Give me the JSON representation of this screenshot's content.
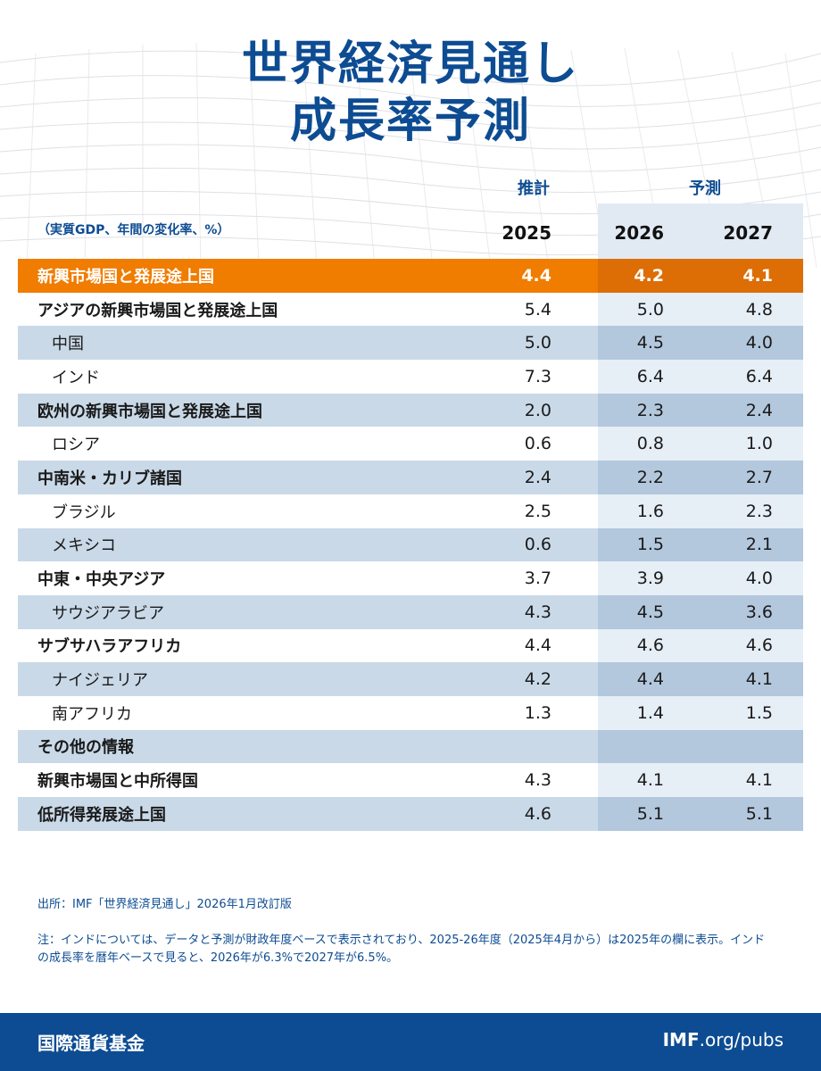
{
  "title": {
    "line1": "世界経済見通し",
    "line2": "成長率予測"
  },
  "header": {
    "estimate_label": "推計",
    "projection_label": "予測",
    "unit_note": "（実質GDP、年間の変化率、%）",
    "years": [
      "2025",
      "2026",
      "2027"
    ]
  },
  "colors": {
    "accent": "#0d4c92",
    "highlight": "#f07c00",
    "shade": "#c9d9e8",
    "projection_shade": "#b3c7dd"
  },
  "chart_data": {
    "type": "table",
    "columns": [
      "2025",
      "2026",
      "2027"
    ],
    "rows": [
      {
        "label": "新興市場国と発展途上国",
        "values": [
          "4.4",
          "4.2",
          "4.1"
        ]
      },
      {
        "label": "アジアの新興市場国と発展途上国",
        "values": [
          "5.4",
          "5.0",
          "4.8"
        ]
      },
      {
        "label": "中国",
        "values": [
          "5.0",
          "4.5",
          "4.0"
        ]
      },
      {
        "label": "インド",
        "values": [
          "7.3",
          "6.4",
          "6.4"
        ]
      },
      {
        "label": "欧州の新興市場国と発展途上国",
        "values": [
          "2.0",
          "2.3",
          "2.4"
        ]
      },
      {
        "label": "ロシア",
        "values": [
          "0.6",
          "0.8",
          "1.0"
        ]
      },
      {
        "label": "中南米・カリブ諸国",
        "values": [
          "2.4",
          "2.2",
          "2.7"
        ]
      },
      {
        "label": "ブラジル",
        "values": [
          "2.5",
          "1.6",
          "2.3"
        ]
      },
      {
        "label": "メキシコ",
        "values": [
          "0.6",
          "1.5",
          "2.1"
        ]
      },
      {
        "label": "中東・中央アジア",
        "values": [
          "3.7",
          "3.9",
          "4.0"
        ]
      },
      {
        "label": "サウジアラビア",
        "values": [
          "4.3",
          "4.5",
          "3.6"
        ]
      },
      {
        "label": "サブサハラアフリカ",
        "values": [
          "4.4",
          "4.6",
          "4.6"
        ]
      },
      {
        "label": "ナイジェリア",
        "values": [
          "4.2",
          "4.4",
          "4.1"
        ]
      },
      {
        "label": "南アフリカ",
        "values": [
          "1.3",
          "1.4",
          "1.5"
        ]
      },
      {
        "label": "その他の情報",
        "values": [
          "",
          "",
          ""
        ]
      },
      {
        "label": "新興市場国と中所得国",
        "values": [
          "4.3",
          "4.1",
          "4.1"
        ]
      },
      {
        "label": "低所得発展途上国",
        "values": [
          "4.6",
          "5.1",
          "5.1"
        ]
      }
    ]
  },
  "footer": {
    "source": "出所：IMF「世界経済見通し」2026年1月改訂版",
    "note": "注：インドについては、データと予測が財政年度ベースで表示されており、2025-26年度（2025年4月から）は2025年の欄に表示。インドの成長率を暦年ベースで見ると、2026年が6.3%で2027年が6.5%。"
  },
  "bottom_bar": {
    "org_name": "国際通貨基金",
    "url_bold": "IMF",
    "url_rest": ".org/pubs"
  }
}
